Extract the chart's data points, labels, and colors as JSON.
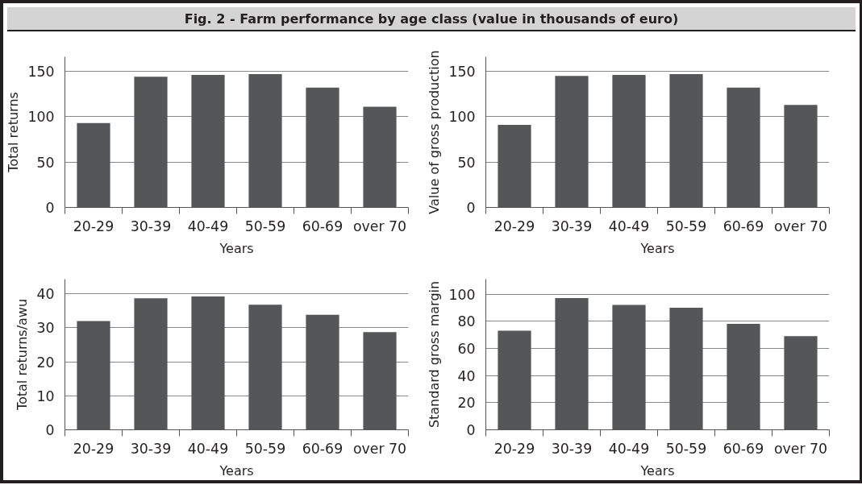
{
  "chart_data": [
    {
      "type": "bar",
      "title": "Fig. 2 - Farm performance by age class (value in thousands of euro)",
      "xlabel": "Years",
      "ylabel": "Total returns",
      "categories": [
        "20-29",
        "30-39",
        "40-49",
        "50-59",
        "60-69",
        "over 70"
      ],
      "values": [
        93,
        144,
        146,
        147,
        132,
        111
      ],
      "color": "#555658",
      "ylim": [
        0,
        166
      ],
      "yticks": [
        0,
        50,
        100,
        150
      ],
      "grid": "y"
    },
    {
      "type": "bar",
      "xlabel": "Years",
      "ylabel": "Value of gross production",
      "categories": [
        "20-29",
        "30-39",
        "40-49",
        "50-59",
        "60-69",
        "over 70"
      ],
      "values": [
        91,
        145,
        146,
        147,
        132,
        113
      ],
      "color": "#555658",
      "ylim": [
        0,
        166
      ],
      "yticks": [
        0,
        50,
        100,
        150
      ],
      "grid": "y"
    },
    {
      "type": "bar",
      "xlabel": "Years",
      "ylabel": "Total returns/awu",
      "categories": [
        "20-29",
        "30-39",
        "40-49",
        "50-59",
        "60-69",
        "over 70"
      ],
      "values": [
        32,
        38.7,
        39.2,
        36.8,
        33.8,
        28.7
      ],
      "color": "#555658",
      "ylim": [
        0,
        44.3
      ],
      "yticks": [
        0,
        10,
        20,
        30,
        40
      ],
      "grid": "y"
    },
    {
      "type": "bar",
      "xlabel": "Years",
      "ylabel": "Standard gross margin",
      "categories": [
        "20-29",
        "30-39",
        "40-49",
        "50-59",
        "60-69",
        "over 70"
      ],
      "values": [
        73,
        97,
        92,
        90,
        78,
        69
      ],
      "color": "#555658",
      "ylim": [
        0,
        111
      ],
      "yticks": [
        0,
        20,
        40,
        60,
        80,
        100
      ],
      "grid": "y"
    }
  ]
}
